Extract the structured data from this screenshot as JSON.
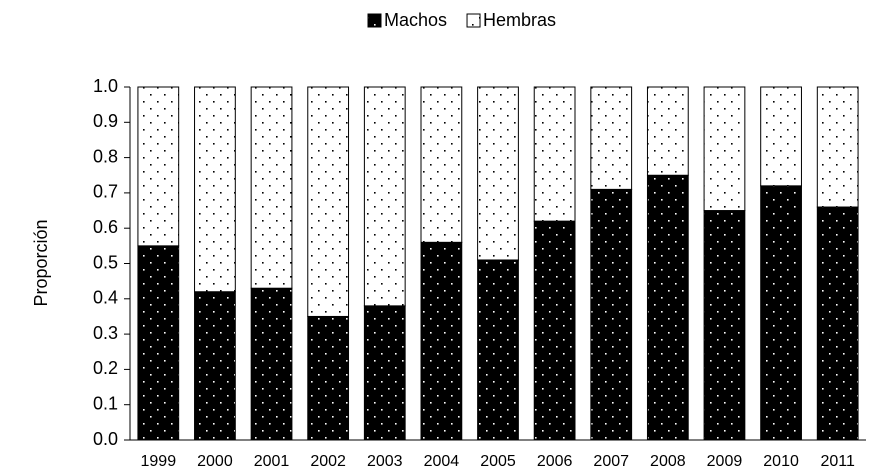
{
  "chart_data": {
    "type": "stacked_bar",
    "y_label": "Proporción",
    "categories": [
      "1999",
      "2000",
      "2001",
      "2002",
      "2003",
      "2004",
      "2005",
      "2006",
      "2007",
      "2008",
      "2009",
      "2010",
      "2011"
    ],
    "series": [
      {
        "name": "Machos",
        "color": "#000000",
        "values": [
          0.55,
          0.42,
          0.43,
          0.35,
          0.38,
          0.56,
          0.51,
          0.62,
          0.71,
          0.75,
          0.65,
          0.72,
          0.66
        ]
      },
      {
        "name": "Hembras",
        "color": "#ffffff",
        "values": [
          0.45,
          0.58,
          0.57,
          0.65,
          0.62,
          0.44,
          0.49,
          0.38,
          0.29,
          0.25,
          0.35,
          0.28,
          0.34
        ]
      }
    ],
    "ylim": [
      0,
      1
    ],
    "yticks": [
      {
        "value": 0,
        "label": "0.0"
      },
      0.1,
      0.2,
      0.3,
      0.4,
      0.5,
      0.6,
      0.7,
      0.8,
      0.9,
      {
        "value": 1,
        "label": "1.0"
      }
    ],
    "legend": "top"
  }
}
